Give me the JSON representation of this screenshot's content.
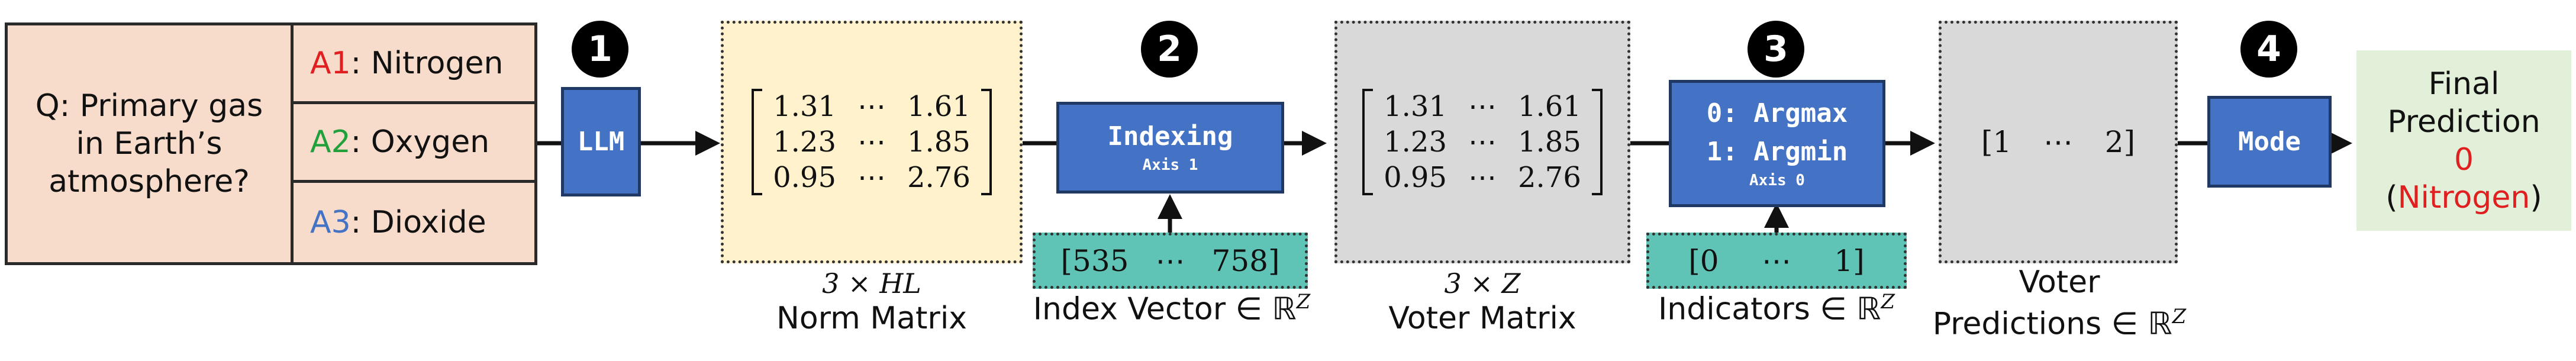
{
  "question": {
    "lines": [
      "Q: Primary gas",
      "in Earth’s",
      "atmosphere?"
    ]
  },
  "answers": [
    {
      "key": "A1",
      "text": ": Nitrogen",
      "color": "#e02020"
    },
    {
      "key": "A2",
      "text": ": Oxygen",
      "color": "#22a03c"
    },
    {
      "key": "A3",
      "text": ": Dioxide",
      "color": "#4472c4"
    }
  ],
  "steps": {
    "badges": [
      "1",
      "2",
      "3",
      "4"
    ],
    "llm": "LLM",
    "indexing": {
      "title": "Indexing",
      "sub": "Axis 1"
    },
    "argmax": {
      "line1": "0: Argmax",
      "line2": "1: Argmin",
      "sub": "Axis 0"
    },
    "mode": "Mode"
  },
  "norm_matrix": {
    "rows": [
      [
        "1.31",
        "⋯",
        "1.61"
      ],
      [
        "1.23",
        "⋯",
        "1.85"
      ],
      [
        "0.95",
        "⋯",
        "2.76"
      ]
    ],
    "dims": "3 × HL",
    "label": "Norm Matrix"
  },
  "index_vector": {
    "values": [
      "[535",
      "⋯",
      "758]"
    ],
    "label": "Index Vector ∈ ℝ",
    "sup": "Z"
  },
  "voter_matrix": {
    "rows": [
      [
        "1.31",
        "⋯",
        "1.61"
      ],
      [
        "1.23",
        "⋯",
        "1.85"
      ],
      [
        "0.95",
        "⋯",
        "2.76"
      ]
    ],
    "dims": "3 × Z",
    "label": "Voter Matrix"
  },
  "indicators": {
    "values": [
      "[0",
      "⋯",
      "1]"
    ],
    "label": "Indicators ∈ ℝ",
    "sup": "Z"
  },
  "voter_predictions": {
    "values": [
      "[1",
      "⋯",
      "2]"
    ],
    "label_line1": "Voter",
    "label_line2": "Predictions ∈ ℝ",
    "sup": "Z"
  },
  "final_prediction": {
    "line1": "Final",
    "line2": "Prediction",
    "value": "0",
    "open": "(",
    "answer": "Nitrogen",
    "close": ")",
    "value_color": "#e02020"
  }
}
